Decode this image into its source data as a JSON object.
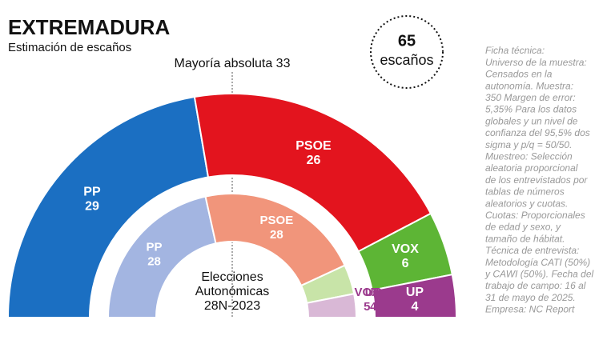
{
  "chart_data": {
    "type": "parliament",
    "title": "EXTREMADURA",
    "subtitle": "Estimación de escaños",
    "majority_label": "Mayoría absoluta 33",
    "total": 65,
    "total_label": "escaños",
    "categories": [
      "PP",
      "PSOE",
      "VOX",
      "UP"
    ],
    "rings": [
      {
        "values": [
          29,
          26,
          6,
          4
        ],
        "colors": [
          "#1b6fc2",
          "#e3141e",
          "#5db535",
          "#9b3a8d"
        ]
      },
      {
        "label_lines": [
          "Elecciones",
          "Autonómicas",
          "28N-2023"
        ],
        "values": [
          28,
          28,
          5,
          4
        ],
        "colors": [
          "#a3b5e1",
          "#f1957b",
          "#c8e4a8",
          "#d9b8d6"
        ]
      }
    ],
    "footnote": [
      "Ficha técnica:",
      "Universo de la muestra:",
      "Censados en la",
      "autonomía. Muestra:",
      "350 Margen de error:",
      "5,35% Para los datos",
      "globales y un nivel de",
      "confianza del 95,5% dos",
      "sigma y p/q = 50/50.",
      "Muestreo: Selección",
      "aleatoria proporcional",
      "de los entrevistados por",
      "tablas de números",
      "aleatorios y cuotas.",
      "Cuotas: Proporcionales",
      "de edad y sexo, y",
      "tamaño de hábitat.",
      "Técnica de entrevista:",
      "Metodología CATI (50%)",
      "y CAWI (50%). Fecha del",
      "trabajo de campo: 16 al",
      "31 de mayo de 2025.",
      "Empresa: NC Report"
    ]
  }
}
